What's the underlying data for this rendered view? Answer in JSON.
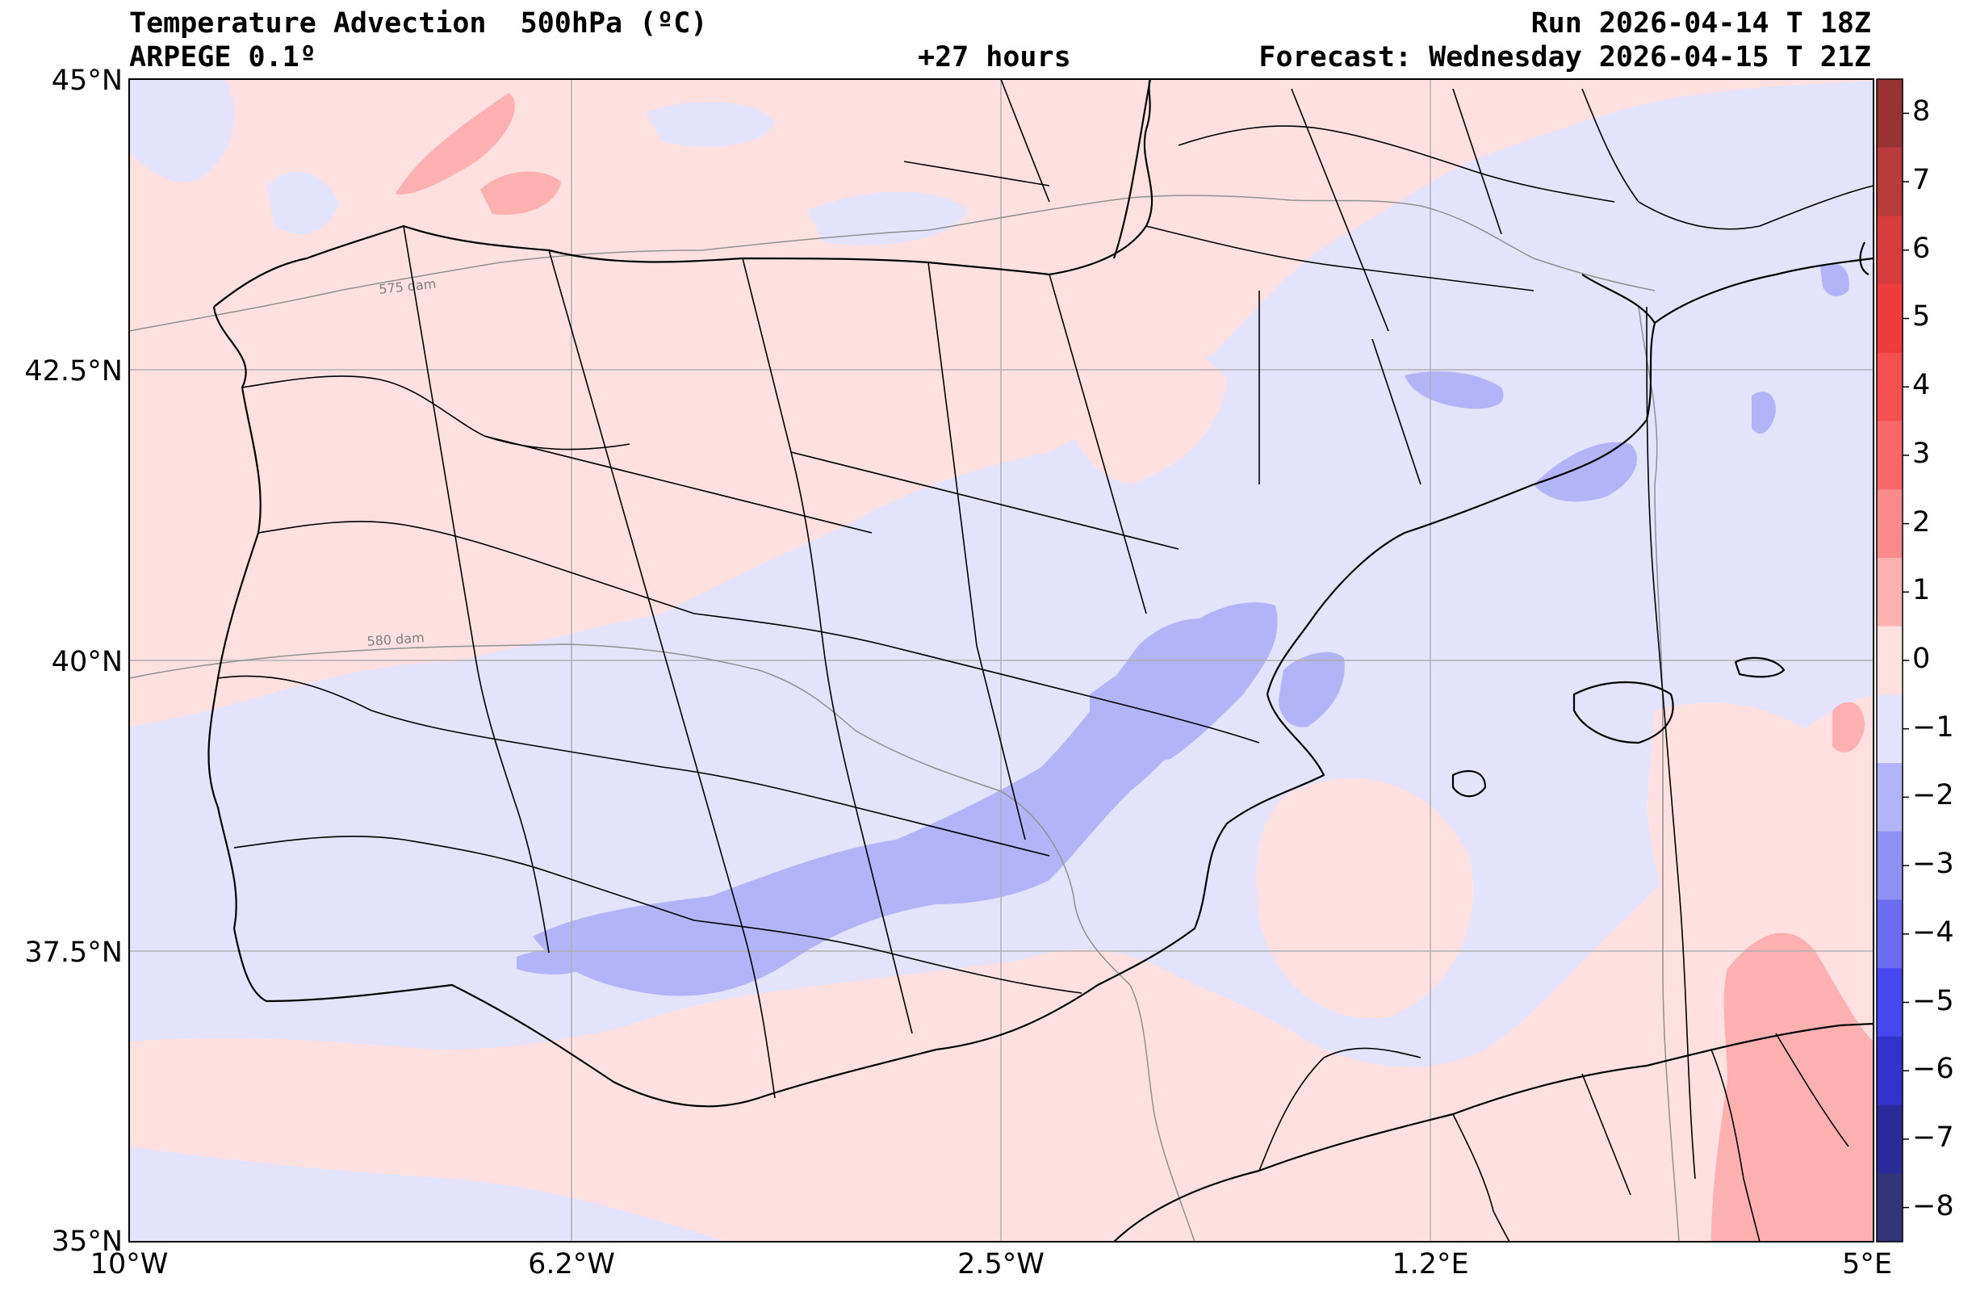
{
  "header": {
    "title": "Temperature Advection  500hPa (ºC)",
    "model": "ARPEGE 0.1º",
    "lead": "+27 hours",
    "run": "Run 2026-04-14 T 18Z",
    "forecast": "Forecast: Wednesday 2026-04-15 T 21Z"
  },
  "axes": {
    "lat_labels": [
      "45°N",
      "42.5°N",
      "40°N",
      "37.5°N",
      "35°N"
    ],
    "lon_labels": [
      "10°W",
      "6.2°W",
      "2.5°W",
      "1.2°E",
      "5°E"
    ]
  },
  "contour_labels": [
    "575 dam",
    "580 dam"
  ],
  "colorbar": {
    "ticks": [
      "8",
      "7",
      "6",
      "5",
      "4",
      "3",
      "2",
      "1",
      "0",
      "−1",
      "−2",
      "−3",
      "−4",
      "−5",
      "−6",
      "−7",
      "−8"
    ],
    "colors_top_to_bottom": [
      "#993333",
      "#b83a3a",
      "#d83c3c",
      "#ee3b3b",
      "#f55050",
      "#f86868",
      "#fb8a8a",
      "#fdb0b0",
      "#ffe0e0",
      "#e3e3fb",
      "#b3b3f7",
      "#8f8ff5",
      "#6b6bf2",
      "#4747ef",
      "#3333cc",
      "#2a2a99",
      "#333377"
    ]
  },
  "colors": {
    "warm_weak": "#ffe0e0",
    "warm_mid": "#fdb0b0",
    "warm_strong": "#f89a9a",
    "cold_weak": "#e3e3fb",
    "cold_mid": "#b3b3f7",
    "grid": "#b0b0b0",
    "border": "#000000"
  }
}
